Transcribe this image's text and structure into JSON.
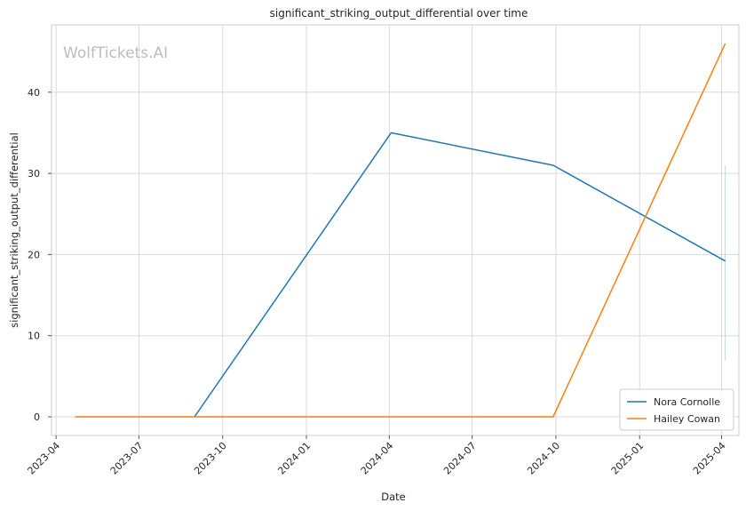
{
  "watermark": "WolfTickets.AI",
  "chart_data": {
    "type": "line",
    "title": "significant_striking_output_differential over time",
    "xlabel": "Date",
    "ylabel": "significant_striking_output_differential",
    "x_ticks": [
      "2023-04",
      "2023-07",
      "2023-10",
      "2024-01",
      "2024-04",
      "2024-07",
      "2024-10",
      "2025-01",
      "2025-04"
    ],
    "y_ticks": [
      0,
      10,
      20,
      30,
      40
    ],
    "xlim": [
      "2023-03-27",
      "2025-04-20"
    ],
    "ylim": [
      -2.3,
      48.3
    ],
    "grid": true,
    "legend_position": "bottom-right",
    "series": [
      {
        "name": "Nora Cornolle",
        "color": "#1f77b4",
        "x": [
          "2023-08-31",
          "2024-04-03",
          "2024-09-28",
          "2025-04-05"
        ],
        "y": [
          0,
          35,
          31,
          19.2
        ]
      },
      {
        "name": "Hailey Cowan",
        "color": "#ff7f0e",
        "x": [
          "2023-04-22",
          "2024-09-28",
          "2025-04-05"
        ],
        "y": [
          0,
          0,
          46
        ]
      }
    ],
    "error_bar": {
      "x": "2025-04-05",
      "y_low": 7,
      "y_high": 31,
      "color": "#a9c6d9"
    }
  }
}
